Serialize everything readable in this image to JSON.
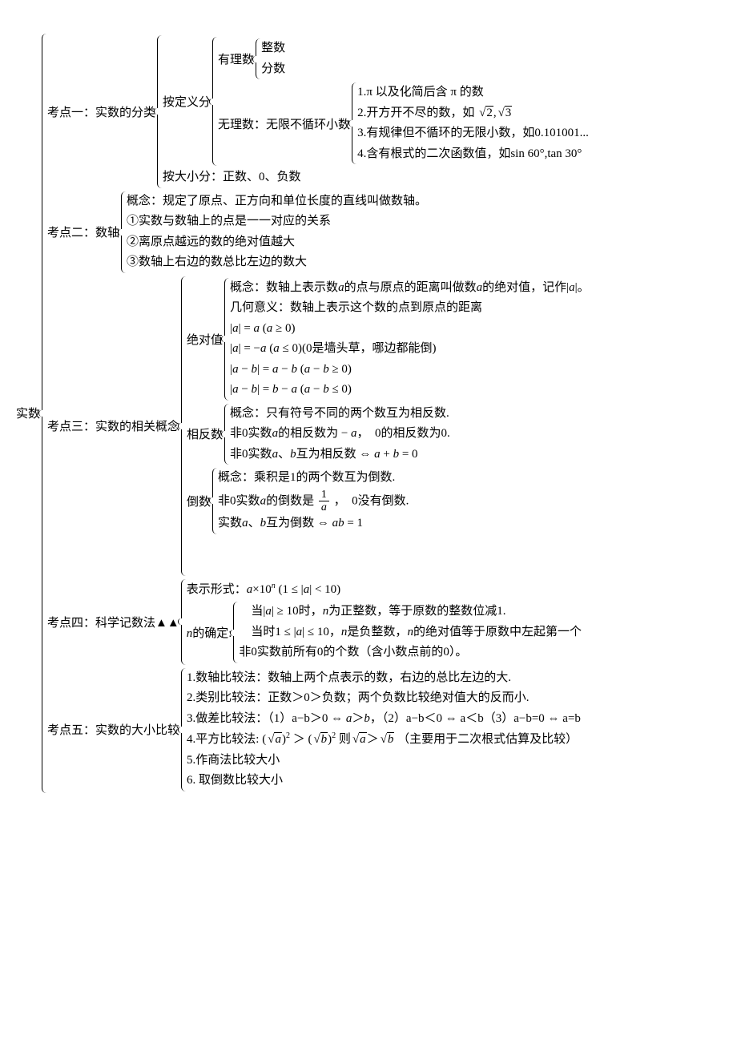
{
  "root_label": "实数",
  "points": {
    "p1": {
      "label": "考点一：实数的分类",
      "by_def_label": "按定义分",
      "rational_label": "有理数",
      "rational_children": [
        "整数",
        "分数"
      ],
      "irrational_label": "无理数：无限不循环小数",
      "irrational_items": [
        "1.π 以及化简后含 π 的数",
        "2.开方开不尽的数，如",
        "3.有规律但不循环的无限小数，如0.101001...",
        "4.含有根式的二次函数值，如sin 60°,tan 30°"
      ],
      "sqrt_examples": [
        "2",
        "3"
      ],
      "by_size": "按大小分：正数、0、负数"
    },
    "p2": {
      "label": "考点二：数轴",
      "items": [
        "概念：规定了原点、正方向和单位长度的直线叫做数轴。",
        "①实数与数轴上的点是一一对应的关系",
        "②离原点越远的数的绝对值越大",
        "③数轴上右边的数总比左边的数大"
      ]
    },
    "p3": {
      "label": "考点三：实数的相关概念",
      "abs": {
        "label": "绝对值",
        "lines": [
          "概念：数轴上表示数a的点与原点的距离叫做数a的绝对值，记作|a|。",
          "几何意义：数轴上表示这个数的点到原点的距离",
          "|a| = a (a ≥ 0)",
          "|a| = −a (a ≤ 0)(0是墙头草，哪边都能倒)",
          "|a − b| = a − b (a − b ≥ 0)",
          "|a − b| = b − a (a − b ≤ 0)"
        ]
      },
      "opp": {
        "label": "相反数",
        "lines": [
          "概念：只有符号不同的两个数互为相反数.",
          "非0实数a的相反数为 − a，　0的相反数为0.",
          "非0实数a、b互为相反数 ⇔ a + b = 0"
        ]
      },
      "recip": {
        "label": "倒数",
        "line1": "概念：乘积是1的两个数互为倒数.",
        "line2a": "非0实数a的倒数是",
        "line2b": "，　0没有倒数.",
        "line3": "实数a、b互为倒数 ⇔ ab = 1"
      }
    },
    "p4": {
      "label": "考点四：科学记数法▲▲",
      "form": "表示形式：a×10ⁿ (1 ≤ |a| < 10)",
      "n_label": "n的确定:",
      "n_lines": [
        "　当|a| ≥ 10时，n为正整数，等于原数的整数位减1.",
        "　当时1 ≤ |a| ≤ 10，n是负整数，n的绝对值等于原数中左起第一个",
        "非0实数前所有0的个数（含小数点前的0）。"
      ]
    },
    "p5": {
      "label": "考点五：实数的大小比较",
      "lines": [
        "1.数轴比较法：数轴上两个点表示的数，右边的总比左边的大.",
        "2.类别比较法：正数＞0＞负数；两个负数比较绝对值大的反而小.",
        "3.做差比较法：（1）a−b＞0 ⇔ a＞b，（2）a−b＜0 ⇔ a＜b（3）a−b=0 ⇔ a=b",
        "5.作商法比较大小",
        "6. 取倒数比较大小"
      ],
      "line4_prefix": "4.平方比较法:",
      "line4_suffix": "（主要用于二次根式估算及比较）"
    }
  },
  "style": {
    "font_size": 15,
    "text_color": "#000000",
    "bg_color": "#ffffff"
  }
}
